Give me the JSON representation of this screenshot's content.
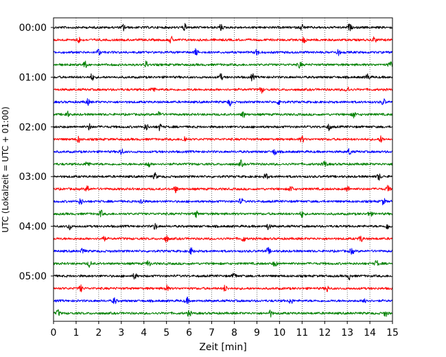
{
  "chart_data": {
    "type": "line",
    "title": "",
    "xlabel": "Zeit  [min]",
    "ylabel": "UTC (Lokalzeit = UTC + 01:00)",
    "xlim": [
      0,
      15
    ],
    "x_ticks": [
      "0",
      "1",
      "2",
      "3",
      "4",
      "5",
      "6",
      "7",
      "8",
      "9",
      "10",
      "11",
      "12",
      "13",
      "14",
      "15"
    ],
    "y_tick_labels": [
      {
        "label": "00:00",
        "trace_index": 0
      },
      {
        "label": "01:00",
        "trace_index": 4
      },
      {
        "label": "02:00",
        "trace_index": 8
      },
      {
        "label": "03:00",
        "trace_index": 12
      },
      {
        "label": "04:00",
        "trace_index": 16
      },
      {
        "label": "05:00",
        "trace_index": 20
      }
    ],
    "grid": {
      "vertical": true,
      "horizontal": false,
      "style": "dotted"
    },
    "trace_count": 24,
    "trace_interval_minutes": 15,
    "trace_colors": [
      "#000000",
      "#ff0000",
      "#0000ff",
      "#008000"
    ],
    "series": [
      {
        "start": "00:00",
        "color": "#000000",
        "events_min": [
          3.1,
          5.8,
          7.4,
          11.0,
          13.1
        ]
      },
      {
        "start": "00:15",
        "color": "#ff0000",
        "events_min": [
          1.1,
          5.2,
          11.1,
          14.2
        ]
      },
      {
        "start": "00:30",
        "color": "#0000ff",
        "events_min": [
          2.0,
          6.3,
          9.0,
          12.6
        ]
      },
      {
        "start": "00:45",
        "color": "#008000",
        "events_min": [
          1.4,
          4.1,
          10.9,
          14.9
        ]
      },
      {
        "start": "01:00",
        "color": "#000000",
        "events_min": [
          1.7,
          7.4,
          8.8,
          13.9
        ]
      },
      {
        "start": "01:15",
        "color": "#ff0000",
        "events_min": [
          4.4,
          9.2,
          13.0
        ]
      },
      {
        "start": "01:30",
        "color": "#0000ff",
        "events_min": [
          1.5,
          7.8,
          10.0,
          14.6
        ]
      },
      {
        "start": "01:45",
        "color": "#008000",
        "events_min": [
          0.6,
          4.7,
          8.4,
          13.3
        ]
      },
      {
        "start": "02:00",
        "color": "#000000",
        "events_min": [
          1.6,
          4.1,
          4.7,
          12.2
        ]
      },
      {
        "start": "02:15",
        "color": "#ff0000",
        "events_min": [
          1.1,
          5.8,
          11.0,
          14.5
        ]
      },
      {
        "start": "02:30",
        "color": "#0000ff",
        "events_min": [
          3.0,
          9.8,
          13.1
        ]
      },
      {
        "start": "02:45",
        "color": "#008000",
        "events_min": [
          1.5,
          4.2,
          8.3,
          12.0
        ]
      },
      {
        "start": "03:00",
        "color": "#000000",
        "events_min": [
          4.5,
          9.4,
          14.4
        ]
      },
      {
        "start": "03:15",
        "color": "#ff0000",
        "events_min": [
          1.5,
          5.4,
          10.5,
          13.0,
          14.8
        ]
      },
      {
        "start": "03:30",
        "color": "#0000ff",
        "events_min": [
          1.2,
          3.9,
          8.3,
          14.6
        ]
      },
      {
        "start": "03:45",
        "color": "#008000",
        "events_min": [
          2.1,
          6.3,
          11.0,
          14.0
        ]
      },
      {
        "start": "04:00",
        "color": "#000000",
        "events_min": [
          0.7,
          4.5,
          9.5,
          14.8
        ]
      },
      {
        "start": "04:15",
        "color": "#ff0000",
        "events_min": [
          2.2,
          5.0,
          8.4,
          13.6
        ]
      },
      {
        "start": "04:30",
        "color": "#0000ff",
        "events_min": [
          1.3,
          6.1,
          9.5,
          13.2
        ]
      },
      {
        "start": "04:45",
        "color": "#008000",
        "events_min": [
          1.6,
          4.2,
          9.8,
          14.3
        ]
      },
      {
        "start": "05:00",
        "color": "#000000",
        "events_min": [
          3.6,
          8.0,
          13.1
        ]
      },
      {
        "start": "05:15",
        "color": "#ff0000",
        "events_min": [
          1.2,
          5.0,
          7.6,
          12.1
        ]
      },
      {
        "start": "05:30",
        "color": "#0000ff",
        "events_min": [
          2.7,
          5.9,
          10.5,
          13.8
        ]
      },
      {
        "start": "05:45",
        "color": "#008000",
        "events_min": [
          0.2,
          6.0,
          9.6,
          14.7
        ]
      }
    ]
  }
}
